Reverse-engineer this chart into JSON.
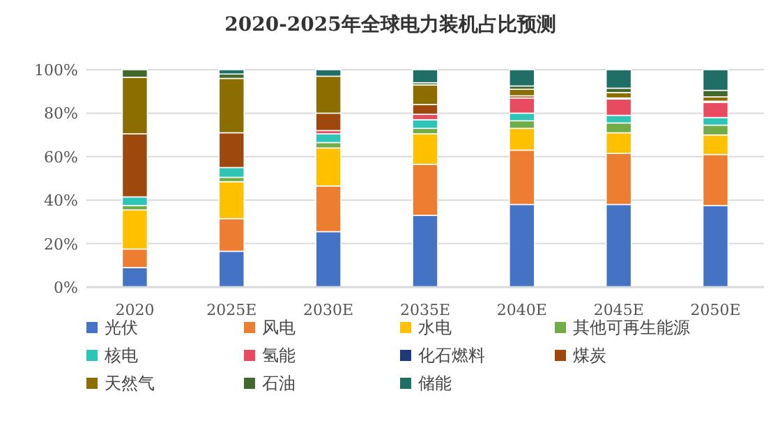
{
  "chart_data": {
    "type": "bar",
    "stacked": true,
    "title": "2020-2025年全球电力装机占比预测",
    "categories": [
      "2020",
      "2025E",
      "2030E",
      "2035E",
      "2040E",
      "2045E",
      "2050E"
    ],
    "series": [
      {
        "name": "光伏",
        "color": "#4472c4",
        "values": [
          9,
          16.5,
          25.5,
          33,
          38,
          38,
          37.5
        ]
      },
      {
        "name": "风电",
        "color": "#ed7d31",
        "values": [
          8.5,
          15,
          21,
          23.5,
          25,
          23.5,
          23.5
        ]
      },
      {
        "name": "水电",
        "color": "#ffc000",
        "values": [
          18,
          17,
          17.5,
          14,
          10,
          9.5,
          9
        ]
      },
      {
        "name": "其他可再生能源",
        "color": "#70ad47",
        "values": [
          2,
          2,
          2.5,
          2.5,
          3.5,
          4.5,
          4.5
        ]
      },
      {
        "name": "核电",
        "color": "#2ec4b6",
        "values": [
          4,
          4.5,
          4,
          4,
          3.5,
          3.5,
          3.5
        ]
      },
      {
        "name": "氢能",
        "color": "#e84a5f",
        "values": [
          0,
          0,
          1.5,
          2.5,
          7,
          7.5,
          7
        ]
      },
      {
        "name": "化石燃料",
        "color": "#1f3a7a",
        "values": [
          null,
          null,
          null,
          null,
          null,
          null,
          null
        ]
      },
      {
        "name": "煤炭",
        "color": "#9e480e",
        "values": [
          29,
          16,
          8,
          4.5,
          1,
          0.5,
          0.5
        ]
      },
      {
        "name": "天然气",
        "color": "#8c6d00",
        "values": [
          26,
          25,
          17,
          9,
          3,
          2.5,
          2
        ]
      },
      {
        "name": "石油",
        "color": "#43682b",
        "values": [
          3.5,
          2,
          0,
          1,
          1.5,
          2,
          3
        ]
      },
      {
        "name": "储能",
        "color": "#1f6f66",
        "values": [
          0,
          2,
          3,
          6,
          7.5,
          8.5,
          9.5
        ]
      }
    ],
    "ylim": [
      0,
      100
    ],
    "yticks": [
      {
        "value": 0,
        "label": "0%"
      },
      {
        "value": 20,
        "label": "20%"
      },
      {
        "value": 40,
        "label": "40%"
      },
      {
        "value": 60,
        "label": "60%"
      },
      {
        "value": 80,
        "label": "80%"
      },
      {
        "value": 100,
        "label": "100%"
      }
    ],
    "grid": "y",
    "legend": "bottom"
  }
}
